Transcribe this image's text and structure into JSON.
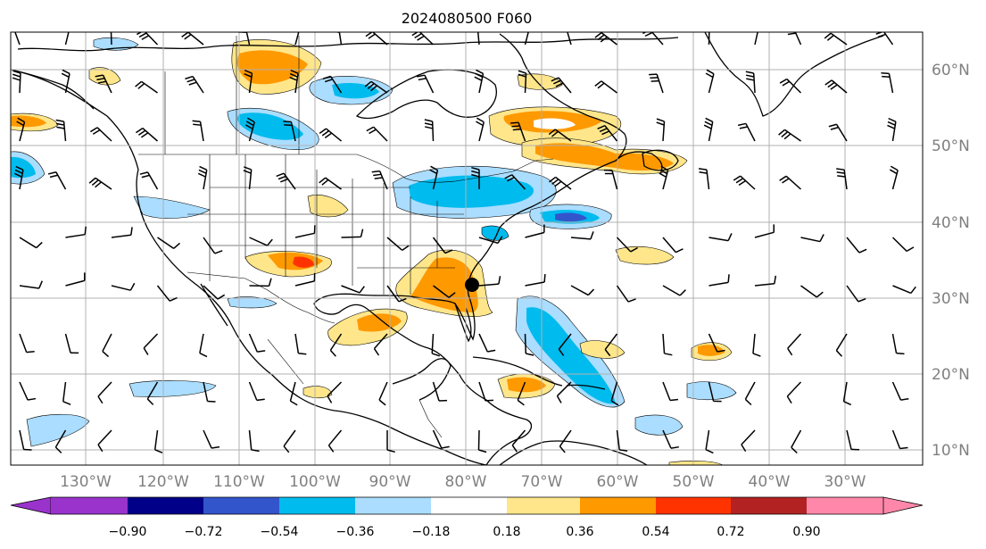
{
  "title": "2024080500 F060",
  "map": {
    "lon_labels": [
      "130°W",
      "120°W",
      "110°W",
      "100°W",
      "90°W",
      "80°W",
      "70°W",
      "60°W",
      "50°W",
      "40°W",
      "30°W"
    ],
    "lat_labels": [
      "60°N",
      "50°N",
      "40°N",
      "30°N",
      "20°N",
      "10°N"
    ],
    "hurricane_marker": "filled-black-circle"
  },
  "colorbar": {
    "ticks": [
      "−0.90",
      "−0.72",
      "−0.54",
      "−0.36",
      "−0.18",
      "0.18",
      "0.36",
      "0.54",
      "0.72",
      "0.90"
    ],
    "colors": [
      "#9933cc",
      "#000088",
      "#3355cc",
      "#00bbee",
      "#aaddff",
      "#ffffff",
      "#ffe68a",
      "#ff9900",
      "#ff3300",
      "#b22222",
      "#ff88aa"
    ]
  },
  "colors": {
    "neg_light": "#aaddff",
    "neg_mid": "#00bbee",
    "neg_strong": "#3355cc",
    "pos_light": "#ffe68a",
    "pos_mid": "#ff9900",
    "pos_strong": "#ff3300",
    "grid": "#b0b0b0",
    "coast": "#000000"
  }
}
